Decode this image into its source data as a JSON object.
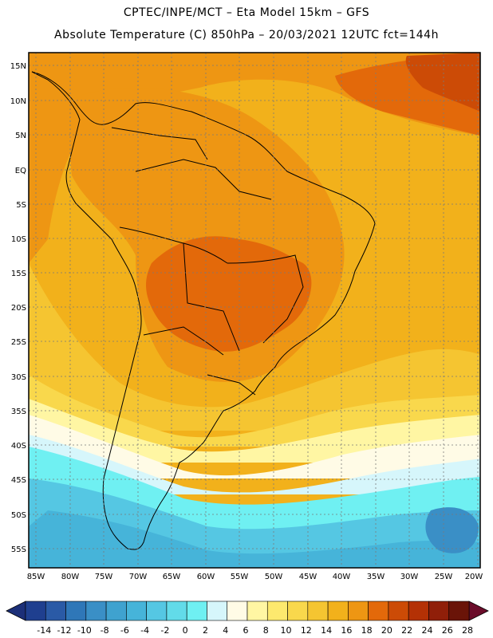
{
  "header": {
    "line1": "CPTEC/INPE/MCT –  Eta Model 15km – GFS",
    "line2": "Absolute Temperature (C) 850hPa – 20/03/2021 12UTC fct=144h"
  },
  "axes": {
    "lat_labels": [
      "15N",
      "10N",
      "5N",
      "EQ",
      "5S",
      "10S",
      "15S",
      "20S",
      "25S",
      "30S",
      "35S",
      "40S",
      "45S",
      "50S",
      "55S"
    ],
    "lon_labels": [
      "85W",
      "80W",
      "75W",
      "70W",
      "65W",
      "60W",
      "55W",
      "50W",
      "45W",
      "40W",
      "35W",
      "30W",
      "25W",
      "20W"
    ]
  },
  "colorbar": {
    "labels": [
      "-14",
      "-12",
      "-10",
      "-8",
      "-6",
      "-4",
      "-2",
      "0",
      "2",
      "4",
      "6",
      "8",
      "10",
      "12",
      "14",
      "16",
      "18",
      "20",
      "22",
      "24",
      "26",
      "28"
    ],
    "colors": [
      "#1f3f8f",
      "#2a5aa6",
      "#2f77b8",
      "#3a8fc6",
      "#3fa2cf",
      "#46b4d9",
      "#55c7e3",
      "#62dbe9",
      "#6ff0f2",
      "#d6f6fb",
      "#fffbe6",
      "#fff6a3",
      "#fde96e",
      "#f9d84c",
      "#f5c531",
      "#f2b11b",
      "#ee9613",
      "#e3690a",
      "#cc4b06",
      "#b43105",
      "#901f09",
      "#6a1408"
    ],
    "left_arrow_color": "#1c2f78",
    "right_arrow_color": "#6b0c2a"
  }
}
